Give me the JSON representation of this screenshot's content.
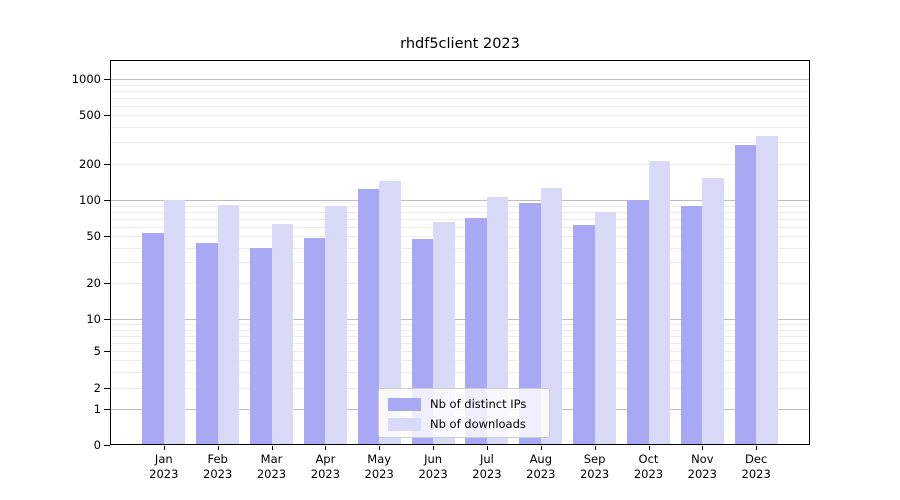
{
  "title": "rhdf5client 2023",
  "chart_data": {
    "type": "bar",
    "title": "rhdf5client 2023",
    "categories": [
      "Jan",
      "Feb",
      "Mar",
      "Apr",
      "May",
      "Jun",
      "Jul",
      "Aug",
      "Sep",
      "Oct",
      "Nov",
      "Dec"
    ],
    "year_label": "2023",
    "series": [
      {
        "name": "Nb of distinct IPs",
        "color": "#a8a8f5",
        "values": [
          53,
          44,
          40,
          48,
          123,
          47,
          71,
          95,
          62,
          100,
          89,
          285
        ]
      },
      {
        "name": "Nb of downloads",
        "color": "#d9d9f8",
        "values": [
          100,
          91,
          63,
          90,
          144,
          65,
          105,
          126,
          80,
          211,
          151,
          338
        ]
      }
    ],
    "xlabel": "",
    "ylabel": "",
    "yscale": "symlog",
    "ytick_labels": [
      1000,
      500,
      200,
      100,
      50,
      20,
      10,
      5,
      2,
      1,
      0
    ],
    "ylim": [
      0,
      1400
    ],
    "grid": true,
    "legend_position": "lower center",
    "colors": {
      "major_grid": "#bdbdbd",
      "minor_grid": "#ececec",
      "axis": "#000000"
    }
  }
}
